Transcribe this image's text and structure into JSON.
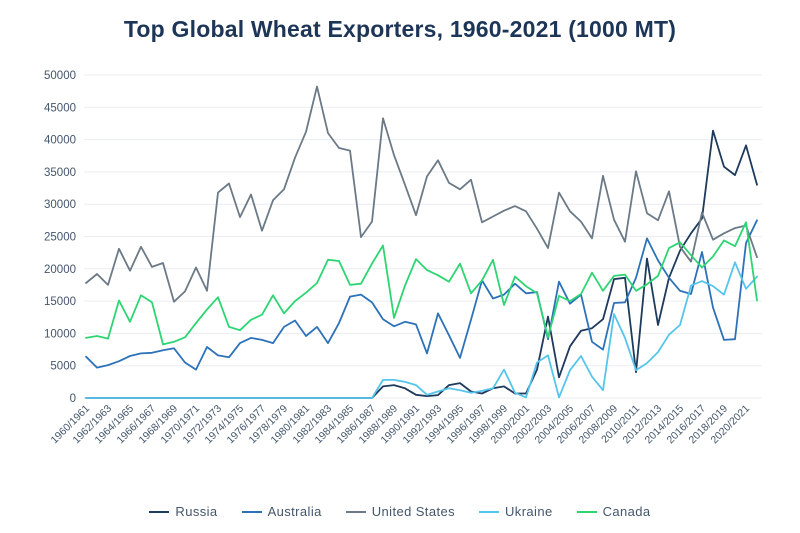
{
  "title": "Top Global Wheat Exporters, 1960-2021 (1000 MT)",
  "colors": {
    "title_text": "#1d3557",
    "axis_text": "#44566b",
    "gridline": "#e9edf1",
    "background": "#ffffff"
  },
  "chart_data": {
    "type": "line",
    "title": "Top Global Wheat Exporters, 1960-2021 (1000 MT)",
    "xlabel": "",
    "ylabel": "",
    "ylim": [
      0,
      50000
    ],
    "y_ticks": [
      0,
      5000,
      10000,
      15000,
      20000,
      25000,
      30000,
      35000,
      40000,
      45000,
      50000
    ],
    "grid": "horizontal",
    "legend_position": "bottom",
    "x_tick_every": 2,
    "categories": [
      "1960/1961",
      "1961/1962",
      "1962/1963",
      "1963/1964",
      "1964/1965",
      "1965/1966",
      "1966/1967",
      "1967/1968",
      "1968/1969",
      "1969/1970",
      "1970/1971",
      "1971/1972",
      "1972/1973",
      "1973/1974",
      "1974/1975",
      "1975/1976",
      "1976/1977",
      "1977/1978",
      "1978/1979",
      "1979/1980",
      "1980/1981",
      "1981/1982",
      "1982/1983",
      "1983/1984",
      "1984/1985",
      "1985/1986",
      "1986/1987",
      "1987/1988",
      "1988/1989",
      "1989/1990",
      "1990/1991",
      "1991/1992",
      "1992/1993",
      "1993/1994",
      "1994/1995",
      "1995/1996",
      "1996/1997",
      "1997/1998",
      "1998/1999",
      "1999/2000",
      "2000/2001",
      "2001/2002",
      "2002/2003",
      "2003/2004",
      "2004/2005",
      "2005/2006",
      "2006/2007",
      "2007/2008",
      "2008/2009",
      "2009/2010",
      "2010/2011",
      "2011/2012",
      "2012/2013",
      "2013/2014",
      "2014/2015",
      "2015/2016",
      "2016/2017",
      "2017/2018",
      "2018/2019",
      "2019/2020",
      "2020/2021",
      "2021/2022"
    ],
    "series": [
      {
        "name": "Russia",
        "color": "#1e3a5c",
        "values": [
          0,
          0,
          0,
          0,
          0,
          0,
          0,
          0,
          0,
          0,
          0,
          0,
          0,
          0,
          0,
          0,
          0,
          0,
          0,
          0,
          0,
          0,
          0,
          0,
          0,
          0,
          0,
          1800,
          2000,
          1500,
          500,
          300,
          450,
          2000,
          2300,
          1000,
          700,
          1500,
          1800,
          700,
          700,
          4400,
          12600,
          3200,
          8000,
          10400,
          10800,
          12200,
          18400,
          18600,
          4000,
          21600,
          11300,
          18600,
          22800,
          25500,
          27800,
          41400,
          35800,
          34500,
          39100,
          33000
        ]
      },
      {
        "name": "Australia",
        "color": "#2d72b9",
        "values": [
          6400,
          4700,
          5100,
          5700,
          6500,
          6900,
          7000,
          7400,
          7700,
          5500,
          4400,
          7900,
          6600,
          6300,
          8500,
          9300,
          9000,
          8500,
          11000,
          12000,
          9600,
          11000,
          8500,
          11600,
          15700,
          16000,
          14800,
          12200,
          11100,
          11800,
          11400,
          6900,
          13100,
          9700,
          6200,
          12100,
          18200,
          15400,
          16000,
          17700,
          16200,
          16400,
          9100,
          18000,
          14600,
          16000,
          8700,
          7500,
          14700,
          14800,
          18600,
          24700,
          21300,
          18600,
          16600,
          16100,
          22600,
          14000,
          9000,
          9100,
          24000,
          27500
        ]
      },
      {
        "name": "United States",
        "color": "#6b7a86",
        "values": [
          17800,
          19200,
          17500,
          23100,
          19700,
          23400,
          20300,
          20900,
          14900,
          16500,
          20200,
          16600,
          31800,
          33200,
          28000,
          31500,
          25900,
          30600,
          32300,
          37200,
          41200,
          48200,
          41000,
          38700,
          38300,
          24900,
          27300,
          43300,
          37600,
          33000,
          28300,
          34300,
          36800,
          33300,
          32300,
          33800,
          27200,
          28100,
          29000,
          29700,
          28900,
          26200,
          23200,
          31800,
          28900,
          27300,
          24700,
          34400,
          27600,
          24200,
          35100,
          28600,
          27500,
          32000,
          23400,
          21100,
          28700,
          24500,
          25500,
          26300,
          26700,
          21800
        ]
      },
      {
        "name": "Ukraine",
        "color": "#56c5ec",
        "values": [
          0,
          0,
          0,
          0,
          0,
          0,
          0,
          0,
          0,
          0,
          0,
          0,
          0,
          0,
          0,
          0,
          0,
          0,
          0,
          0,
          0,
          0,
          0,
          0,
          0,
          0,
          0,
          2800,
          2800,
          2500,
          2000,
          500,
          1000,
          1500,
          1200,
          800,
          1100,
          1500,
          4400,
          800,
          100,
          5500,
          6600,
          100,
          4300,
          6500,
          3300,
          1200,
          13000,
          9300,
          4300,
          5400,
          7100,
          9800,
          11300,
          17400,
          18100,
          17300,
          16000,
          21000,
          16900,
          18800
        ]
      },
      {
        "name": "Canada",
        "color": "#2ed573",
        "values": [
          9300,
          9600,
          9200,
          15100,
          11800,
          15900,
          14800,
          8300,
          8700,
          9400,
          11600,
          13700,
          15600,
          11000,
          10500,
          12100,
          12900,
          15900,
          13100,
          15000,
          16300,
          17800,
          21400,
          21200,
          17500,
          17700,
          20800,
          23600,
          12400,
          17400,
          21500,
          19800,
          19000,
          18000,
          20800,
          16200,
          18200,
          21400,
          14400,
          18800,
          17300,
          16200,
          9400,
          15800,
          15000,
          16100,
          19400,
          16600,
          18900,
          19100,
          16600,
          17600,
          18900,
          23200,
          24100,
          22100,
          20200,
          21900,
          24400,
          23500,
          27200,
          15100
        ]
      }
    ]
  },
  "legend": {
    "items": [
      "Russia",
      "Australia",
      "United States",
      "Ukraine",
      "Canada"
    ]
  }
}
